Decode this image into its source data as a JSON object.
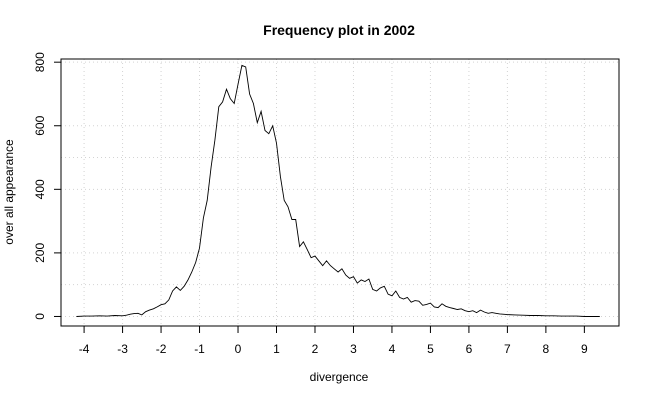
{
  "chart_data": {
    "type": "line",
    "title": "Frequency plot in 2002",
    "xlabel": "divergence",
    "ylabel": "over all appearance",
    "xlim": [
      -4.6,
      9.9
    ],
    "ylim": [
      -30,
      810
    ],
    "x_ticks": [
      -4,
      -3,
      -2,
      -1,
      0,
      1,
      2,
      3,
      4,
      5,
      6,
      7,
      8,
      9
    ],
    "y_ticks": [
      0,
      200,
      400,
      600,
      800
    ],
    "grid": true,
    "series": [
      {
        "points": [
          [
            -4.2,
            0
          ],
          [
            -4.0,
            1
          ],
          [
            -3.8,
            1
          ],
          [
            -3.6,
            2
          ],
          [
            -3.4,
            1
          ],
          [
            -3.2,
            3
          ],
          [
            -3.0,
            2
          ],
          [
            -2.9,
            4
          ],
          [
            -2.8,
            7
          ],
          [
            -2.7,
            9
          ],
          [
            -2.6,
            10
          ],
          [
            -2.5,
            5
          ],
          [
            -2.4,
            15
          ],
          [
            -2.3,
            20
          ],
          [
            -2.2,
            24
          ],
          [
            -2.1,
            30
          ],
          [
            -2.0,
            37
          ],
          [
            -1.9,
            40
          ],
          [
            -1.8,
            52
          ],
          [
            -1.7,
            80
          ],
          [
            -1.6,
            93
          ],
          [
            -1.5,
            82
          ],
          [
            -1.4,
            95
          ],
          [
            -1.3,
            115
          ],
          [
            -1.2,
            140
          ],
          [
            -1.1,
            170
          ],
          [
            -1.0,
            215
          ],
          [
            -0.9,
            310
          ],
          [
            -0.8,
            365
          ],
          [
            -0.7,
            470
          ],
          [
            -0.6,
            555
          ],
          [
            -0.5,
            660
          ],
          [
            -0.4,
            675
          ],
          [
            -0.3,
            715
          ],
          [
            -0.2,
            685
          ],
          [
            -0.1,
            670
          ],
          [
            0.0,
            730
          ],
          [
            0.1,
            790
          ],
          [
            0.2,
            785
          ],
          [
            0.3,
            700
          ],
          [
            0.4,
            670
          ],
          [
            0.5,
            610
          ],
          [
            0.6,
            645
          ],
          [
            0.7,
            585
          ],
          [
            0.8,
            575
          ],
          [
            0.9,
            600
          ],
          [
            1.0,
            545
          ],
          [
            1.1,
            440
          ],
          [
            1.2,
            365
          ],
          [
            1.3,
            345
          ],
          [
            1.4,
            305
          ],
          [
            1.5,
            305
          ],
          [
            1.6,
            220
          ],
          [
            1.7,
            235
          ],
          [
            1.8,
            210
          ],
          [
            1.9,
            185
          ],
          [
            2.0,
            190
          ],
          [
            2.1,
            175
          ],
          [
            2.2,
            160
          ],
          [
            2.3,
            175
          ],
          [
            2.4,
            160
          ],
          [
            2.5,
            150
          ],
          [
            2.6,
            140
          ],
          [
            2.7,
            150
          ],
          [
            2.8,
            130
          ],
          [
            2.9,
            120
          ],
          [
            3.0,
            125
          ],
          [
            3.1,
            105
          ],
          [
            3.2,
            115
          ],
          [
            3.3,
            110
          ],
          [
            3.4,
            118
          ],
          [
            3.5,
            85
          ],
          [
            3.6,
            80
          ],
          [
            3.7,
            90
          ],
          [
            3.8,
            95
          ],
          [
            3.9,
            70
          ],
          [
            4.0,
            65
          ],
          [
            4.1,
            80
          ],
          [
            4.2,
            60
          ],
          [
            4.3,
            55
          ],
          [
            4.4,
            60
          ],
          [
            4.5,
            45
          ],
          [
            4.6,
            50
          ],
          [
            4.7,
            48
          ],
          [
            4.8,
            35
          ],
          [
            4.9,
            38
          ],
          [
            5.0,
            42
          ],
          [
            5.1,
            30
          ],
          [
            5.2,
            28
          ],
          [
            5.3,
            40
          ],
          [
            5.4,
            32
          ],
          [
            5.5,
            28
          ],
          [
            5.6,
            25
          ],
          [
            5.7,
            22
          ],
          [
            5.8,
            24
          ],
          [
            5.9,
            18
          ],
          [
            6.0,
            15
          ],
          [
            6.1,
            18
          ],
          [
            6.2,
            12
          ],
          [
            6.3,
            20
          ],
          [
            6.4,
            14
          ],
          [
            6.5,
            10
          ],
          [
            6.6,
            12
          ],
          [
            6.7,
            10
          ],
          [
            6.8,
            8
          ],
          [
            7.0,
            6
          ],
          [
            7.2,
            5
          ],
          [
            7.4,
            4
          ],
          [
            7.6,
            3
          ],
          [
            7.8,
            3
          ],
          [
            8.0,
            2
          ],
          [
            8.2,
            2
          ],
          [
            8.4,
            1
          ],
          [
            8.6,
            1
          ],
          [
            8.8,
            1
          ],
          [
            9.0,
            0
          ],
          [
            9.2,
            0
          ],
          [
            9.4,
            0
          ]
        ]
      }
    ]
  }
}
